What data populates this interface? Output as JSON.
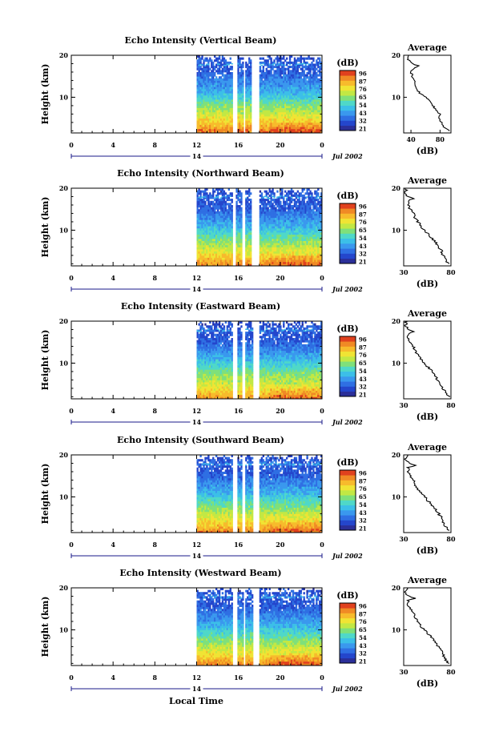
{
  "figure": {
    "xlabel": "Local Time",
    "colorbar_unit": "(dB)",
    "avg_title": "Average",
    "avg_xlabel": "(dB)",
    "date_label": "Jul 2002",
    "day_label": "14"
  },
  "chart_data": [
    {
      "type": "heatmap",
      "title": "Echo Intensity (Vertical Beam)",
      "ylabel": "Height (km)",
      "xlim": [
        0,
        24
      ],
      "ylim": [
        1.5,
        20
      ],
      "xticks": [
        "0",
        "4",
        "8",
        "12",
        "16",
        "20",
        "0"
      ],
      "yticks": [
        "10",
        "20"
      ],
      "data_x_start": 12,
      "gaps": [
        [
          15.4,
          15.9
        ],
        [
          16.5,
          16.7
        ],
        [
          17.3,
          18.0
        ]
      ],
      "profile": [
        [
          2,
          88
        ],
        [
          3,
          82
        ],
        [
          4,
          78
        ],
        [
          5,
          74
        ],
        [
          6,
          70
        ],
        [
          7,
          66
        ],
        [
          8,
          62
        ],
        [
          9,
          58
        ],
        [
          10,
          52
        ],
        [
          11,
          48
        ],
        [
          12,
          45
        ],
        [
          13,
          42
        ],
        [
          14,
          40
        ],
        [
          15,
          37
        ],
        [
          16,
          34
        ],
        [
          17,
          33
        ],
        [
          18,
          35
        ],
        [
          19,
          32
        ]
      ],
      "top_km": 19,
      "colorbar": {
        "ticks": [
          "96",
          "87",
          "76",
          "65",
          "54",
          "43",
          "32",
          "21"
        ]
      },
      "average": {
        "xlim": [
          30,
          95
        ],
        "xticks": [
          "40",
          "80"
        ],
        "yticks": [
          "10",
          "20"
        ],
        "values": [
          [
            2,
            93
          ],
          [
            2.5,
            88
          ],
          [
            3,
            85
          ],
          [
            4,
            82
          ],
          [
            5,
            78
          ],
          [
            6,
            80
          ],
          [
            7,
            74
          ],
          [
            8,
            70
          ],
          [
            9,
            66
          ],
          [
            10,
            60
          ],
          [
            11,
            52
          ],
          [
            12,
            48
          ],
          [
            13,
            46
          ],
          [
            14,
            44
          ],
          [
            15,
            42
          ],
          [
            16,
            40
          ],
          [
            17,
            44
          ],
          [
            17.5,
            50
          ],
          [
            18,
            42
          ],
          [
            18.5,
            38
          ],
          [
            19,
            36
          ],
          [
            20,
            38
          ]
        ]
      }
    },
    {
      "type": "heatmap",
      "title": "Echo Intensity (Northward Beam)",
      "ylabel": "Height (km)",
      "xlim": [
        0,
        24
      ],
      "ylim": [
        1.5,
        20
      ],
      "xticks": [
        "0",
        "4",
        "8",
        "12",
        "16",
        "20",
        "0"
      ],
      "yticks": [
        "10",
        "20"
      ],
      "data_x_start": 12,
      "gaps": [
        [
          15.4,
          15.8
        ],
        [
          16.4,
          16.6
        ],
        [
          17.2,
          18.0
        ]
      ],
      "profile": [
        [
          2,
          86
        ],
        [
          3,
          80
        ],
        [
          4,
          76
        ],
        [
          5,
          72
        ],
        [
          6,
          68
        ],
        [
          7,
          64
        ],
        [
          8,
          60
        ],
        [
          9,
          56
        ],
        [
          10,
          52
        ],
        [
          11,
          47
        ],
        [
          12,
          44
        ],
        [
          13,
          41
        ],
        [
          14,
          38
        ],
        [
          15,
          35
        ],
        [
          16,
          33
        ],
        [
          17,
          32
        ],
        [
          18,
          36
        ],
        [
          19,
          31
        ]
      ],
      "top_km": 19,
      "colorbar": {
        "ticks": [
          "96",
          "87",
          "76",
          "65",
          "54",
          "43",
          "32",
          "21"
        ]
      },
      "average": {
        "xlim": [
          30,
          80
        ],
        "xticks": [
          "30",
          "80"
        ],
        "yticks": [
          "10",
          "20"
        ],
        "values": [
          [
            2,
            78
          ],
          [
            2.5,
            76
          ],
          [
            3,
            74
          ],
          [
            4,
            72
          ],
          [
            5,
            70
          ],
          [
            6,
            67
          ],
          [
            7,
            64
          ],
          [
            8,
            60
          ],
          [
            9,
            56
          ],
          [
            10,
            52
          ],
          [
            11,
            48
          ],
          [
            12,
            45
          ],
          [
            13,
            42
          ],
          [
            14,
            40
          ],
          [
            15,
            37
          ],
          [
            16,
            35
          ],
          [
            17,
            34
          ],
          [
            17.5,
            40
          ],
          [
            18,
            34
          ],
          [
            19,
            32
          ],
          [
            20,
            33
          ]
        ]
      }
    },
    {
      "type": "heatmap",
      "title": "Echo Intensity (Eastward Beam)",
      "ylabel": "Height (km)",
      "xlim": [
        0,
        24
      ],
      "ylim": [
        1.5,
        20
      ],
      "xticks": [
        "0",
        "4",
        "8",
        "12",
        "16",
        "20",
        "0"
      ],
      "yticks": [
        "10",
        "20"
      ],
      "data_x_start": 12,
      "gaps": [
        [
          15.4,
          15.9
        ],
        [
          16.4,
          16.7
        ],
        [
          17.4,
          18.0
        ]
      ],
      "profile": [
        [
          2,
          84
        ],
        [
          3,
          78
        ],
        [
          4,
          74
        ],
        [
          5,
          70
        ],
        [
          6,
          67
        ],
        [
          7,
          64
        ],
        [
          8,
          60
        ],
        [
          9,
          56
        ],
        [
          10,
          52
        ],
        [
          11,
          47
        ],
        [
          12,
          44
        ],
        [
          13,
          41
        ],
        [
          14,
          38
        ],
        [
          15,
          35
        ],
        [
          16,
          33
        ],
        [
          17,
          32
        ],
        [
          18,
          36
        ],
        [
          19,
          31
        ]
      ],
      "top_km": 19,
      "colorbar": {
        "ticks": [
          "96",
          "87",
          "76",
          "65",
          "54",
          "43",
          "32",
          "21"
        ]
      },
      "average": {
        "xlim": [
          30,
          80
        ],
        "xticks": [
          "30",
          "80"
        ],
        "yticks": [
          "10",
          "20"
        ],
        "values": [
          [
            2,
            79
          ],
          [
            2.5,
            76
          ],
          [
            3,
            74
          ],
          [
            4,
            71
          ],
          [
            5,
            69
          ],
          [
            6,
            66
          ],
          [
            7,
            63
          ],
          [
            8,
            60
          ],
          [
            9,
            56
          ],
          [
            10,
            52
          ],
          [
            11,
            48
          ],
          [
            12,
            45
          ],
          [
            13,
            42
          ],
          [
            14,
            40
          ],
          [
            15,
            37
          ],
          [
            16,
            35
          ],
          [
            17,
            34
          ],
          [
            17.5,
            40
          ],
          [
            18,
            34
          ],
          [
            19,
            32
          ],
          [
            20,
            33
          ]
        ]
      }
    },
    {
      "type": "heatmap",
      "title": "Echo Intensity (Southward Beam)",
      "ylabel": "Height (km)",
      "xlim": [
        0,
        24
      ],
      "ylim": [
        1.5,
        20
      ],
      "xticks": [
        "0",
        "4",
        "8",
        "12",
        "16",
        "20",
        "0"
      ],
      "yticks": [
        "10",
        "20"
      ],
      "data_x_start": 12,
      "gaps": [
        [
          15.4,
          15.9
        ],
        [
          16.4,
          16.6
        ],
        [
          17.4,
          18.0
        ]
      ],
      "profile": [
        [
          2,
          86
        ],
        [
          3,
          80
        ],
        [
          4,
          76
        ],
        [
          5,
          72
        ],
        [
          6,
          68
        ],
        [
          7,
          64
        ],
        [
          8,
          60
        ],
        [
          9,
          56
        ],
        [
          10,
          52
        ],
        [
          11,
          47
        ],
        [
          12,
          44
        ],
        [
          13,
          41
        ],
        [
          14,
          38
        ],
        [
          15,
          35
        ],
        [
          16,
          33
        ],
        [
          17,
          32
        ],
        [
          18,
          37
        ],
        [
          19,
          31
        ]
      ],
      "top_km": 19,
      "colorbar": {
        "ticks": [
          "96",
          "87",
          "76",
          "65",
          "54",
          "43",
          "32",
          "21"
        ]
      },
      "average": {
        "xlim": [
          30,
          80
        ],
        "xticks": [
          "30",
          "80"
        ],
        "yticks": [
          "10",
          "20"
        ],
        "values": [
          [
            2,
            78
          ],
          [
            2.5,
            76
          ],
          [
            3,
            74
          ],
          [
            4,
            72
          ],
          [
            5,
            70
          ],
          [
            6,
            67
          ],
          [
            7,
            64
          ],
          [
            8,
            60
          ],
          [
            9,
            56
          ],
          [
            10,
            52
          ],
          [
            11,
            48
          ],
          [
            12,
            45
          ],
          [
            13,
            42
          ],
          [
            14,
            40
          ],
          [
            15,
            37
          ],
          [
            16,
            35
          ],
          [
            17,
            35
          ],
          [
            17.5,
            42
          ],
          [
            18,
            35
          ],
          [
            19,
            32
          ],
          [
            20,
            33
          ]
        ]
      }
    },
    {
      "type": "heatmap",
      "title": "Echo Intensity (Westward Beam)",
      "ylabel": "Height (km)",
      "xlim": [
        0,
        24
      ],
      "ylim": [
        1.5,
        20
      ],
      "xticks": [
        "0",
        "4",
        "8",
        "12",
        "16",
        "20",
        "0"
      ],
      "yticks": [
        "10",
        "20"
      ],
      "data_x_start": 12,
      "gaps": [
        [
          15.4,
          15.9
        ],
        [
          16.5,
          16.7
        ],
        [
          17.4,
          18.0
        ]
      ],
      "profile": [
        [
          2,
          86
        ],
        [
          3,
          80
        ],
        [
          4,
          76
        ],
        [
          5,
          72
        ],
        [
          6,
          68
        ],
        [
          7,
          64
        ],
        [
          8,
          60
        ],
        [
          9,
          56
        ],
        [
          10,
          52
        ],
        [
          11,
          47
        ],
        [
          12,
          44
        ],
        [
          13,
          41
        ],
        [
          14,
          38
        ],
        [
          15,
          35
        ],
        [
          16,
          33
        ],
        [
          17,
          32
        ],
        [
          18,
          37
        ],
        [
          19,
          31
        ]
      ],
      "top_km": 19,
      "colorbar": {
        "ticks": [
          "96",
          "87",
          "76",
          "65",
          "54",
          "43",
          "32",
          "21"
        ]
      },
      "average": {
        "xlim": [
          30,
          80
        ],
        "xticks": [
          "30",
          "80"
        ],
        "yticks": [
          "10",
          "20"
        ],
        "values": [
          [
            2,
            78
          ],
          [
            2.5,
            76
          ],
          [
            3,
            74
          ],
          [
            4,
            72
          ],
          [
            5,
            70
          ],
          [
            6,
            67
          ],
          [
            7,
            64
          ],
          [
            8,
            60
          ],
          [
            9,
            56
          ],
          [
            10,
            52
          ],
          [
            11,
            48
          ],
          [
            12,
            45
          ],
          [
            13,
            42
          ],
          [
            14,
            40
          ],
          [
            15,
            37
          ],
          [
            16,
            35
          ],
          [
            17,
            35
          ],
          [
            17.5,
            42
          ],
          [
            18,
            35
          ],
          [
            19,
            32
          ],
          [
            20,
            33
          ]
        ]
      }
    }
  ]
}
